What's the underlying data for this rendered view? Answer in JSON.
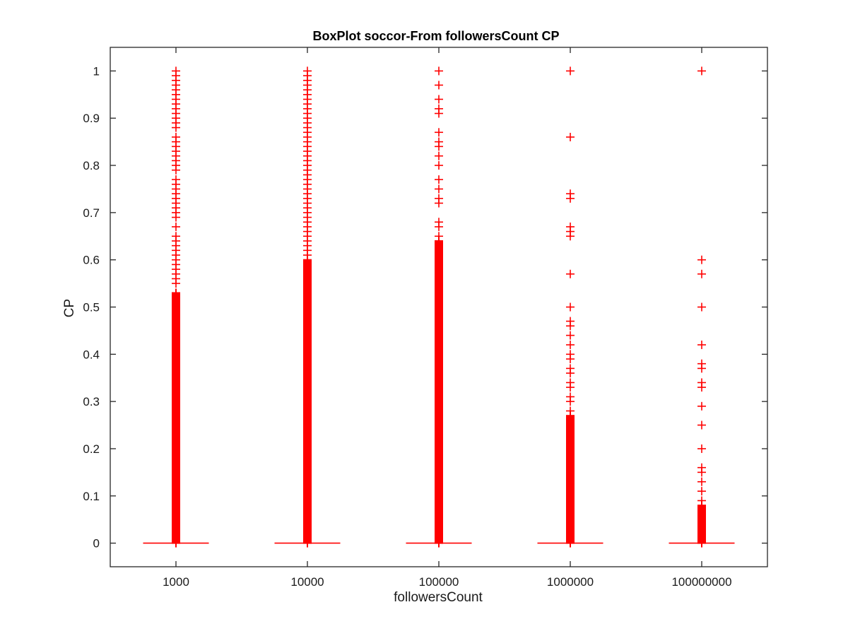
{
  "chart_data": {
    "type": "boxplot",
    "title": "BoxPlot soccor-From followersCount CP",
    "xlabel": "followersCount",
    "ylabel": "CP",
    "ylim": [
      -0.05,
      1.05
    ],
    "yticks": [
      0,
      0.1,
      0.2,
      0.3,
      0.4,
      0.5,
      0.6,
      0.7,
      0.8,
      0.9,
      1
    ],
    "ytick_labels": [
      "0",
      "0.1",
      "0.2",
      "0.3",
      "0.4",
      "0.5",
      "0.6",
      "0.7",
      "0.8",
      "0.9",
      "1"
    ],
    "categories": [
      "1000",
      "10000",
      "100000",
      "1000000",
      "100000000"
    ],
    "grid": false,
    "colors": {
      "outlier": "#ff0000",
      "median": "#ff0000",
      "axis": "#262626"
    },
    "boxes": [
      {
        "category": "1000",
        "min": 0,
        "q1": 0,
        "median": 0,
        "q3": 0,
        "max": 0,
        "outlier_dense_ranges": [
          [
            0,
            0.46
          ],
          [
            0.46,
            0.53
          ]
        ],
        "outliers": [
          0.55,
          0.56,
          0.57,
          0.58,
          0.59,
          0.6,
          0.61,
          0.62,
          0.63,
          0.64,
          0.65,
          0.67,
          0.69,
          0.7,
          0.71,
          0.72,
          0.73,
          0.74,
          0.75,
          0.76,
          0.77,
          0.79,
          0.8,
          0.81,
          0.82,
          0.83,
          0.84,
          0.85,
          0.86,
          0.88,
          0.89,
          0.9,
          0.91,
          0.92,
          0.93,
          0.94,
          0.95,
          0.96,
          0.97,
          0.98,
          0.99,
          1.0
        ]
      },
      {
        "category": "10000",
        "min": 0,
        "q1": 0,
        "median": 0,
        "q3": 0,
        "max": 0,
        "outlier_dense_ranges": [
          [
            0,
            0.42
          ],
          [
            0.42,
            0.6
          ]
        ],
        "outliers": [
          0.61,
          0.62,
          0.63,
          0.64,
          0.65,
          0.66,
          0.67,
          0.68,
          0.69,
          0.7,
          0.71,
          0.72,
          0.73,
          0.74,
          0.75,
          0.76,
          0.77,
          0.78,
          0.79,
          0.8,
          0.81,
          0.82,
          0.83,
          0.84,
          0.85,
          0.86,
          0.87,
          0.88,
          0.89,
          0.9,
          0.91,
          0.92,
          0.93,
          0.94,
          0.95,
          0.96,
          0.97,
          0.98,
          0.99,
          1.0
        ]
      },
      {
        "category": "100000",
        "min": 0,
        "q1": 0,
        "median": 0,
        "q3": 0,
        "max": 0,
        "outlier_dense_ranges": [
          [
            0,
            0.34
          ],
          [
            0.34,
            0.64
          ]
        ],
        "outliers": [
          0.65,
          0.67,
          0.68,
          0.72,
          0.73,
          0.75,
          0.77,
          0.8,
          0.82,
          0.84,
          0.85,
          0.87,
          0.91,
          0.92,
          0.94,
          0.97,
          1.0
        ]
      },
      {
        "category": "1000000",
        "min": 0,
        "q1": 0,
        "median": 0,
        "q3": 0,
        "max": 0,
        "outlier_dense_ranges": [
          [
            0,
            0.14
          ],
          [
            0.14,
            0.27
          ]
        ],
        "outliers": [
          0.28,
          0.3,
          0.31,
          0.33,
          0.34,
          0.36,
          0.37,
          0.39,
          0.4,
          0.42,
          0.44,
          0.46,
          0.47,
          0.5,
          0.57,
          0.65,
          0.66,
          0.67,
          0.73,
          0.74,
          0.86,
          1.0
        ]
      },
      {
        "category": "100000000",
        "min": 0,
        "q1": 0,
        "median": 0,
        "q3": 0,
        "max": 0,
        "outlier_dense_ranges": [
          [
            0,
            0.02
          ],
          [
            0.02,
            0.08
          ]
        ],
        "outliers": [
          0.09,
          0.11,
          0.13,
          0.15,
          0.16,
          0.2,
          0.25,
          0.29,
          0.33,
          0.34,
          0.37,
          0.38,
          0.42,
          0.5,
          0.57,
          0.6,
          1.0
        ]
      }
    ]
  }
}
